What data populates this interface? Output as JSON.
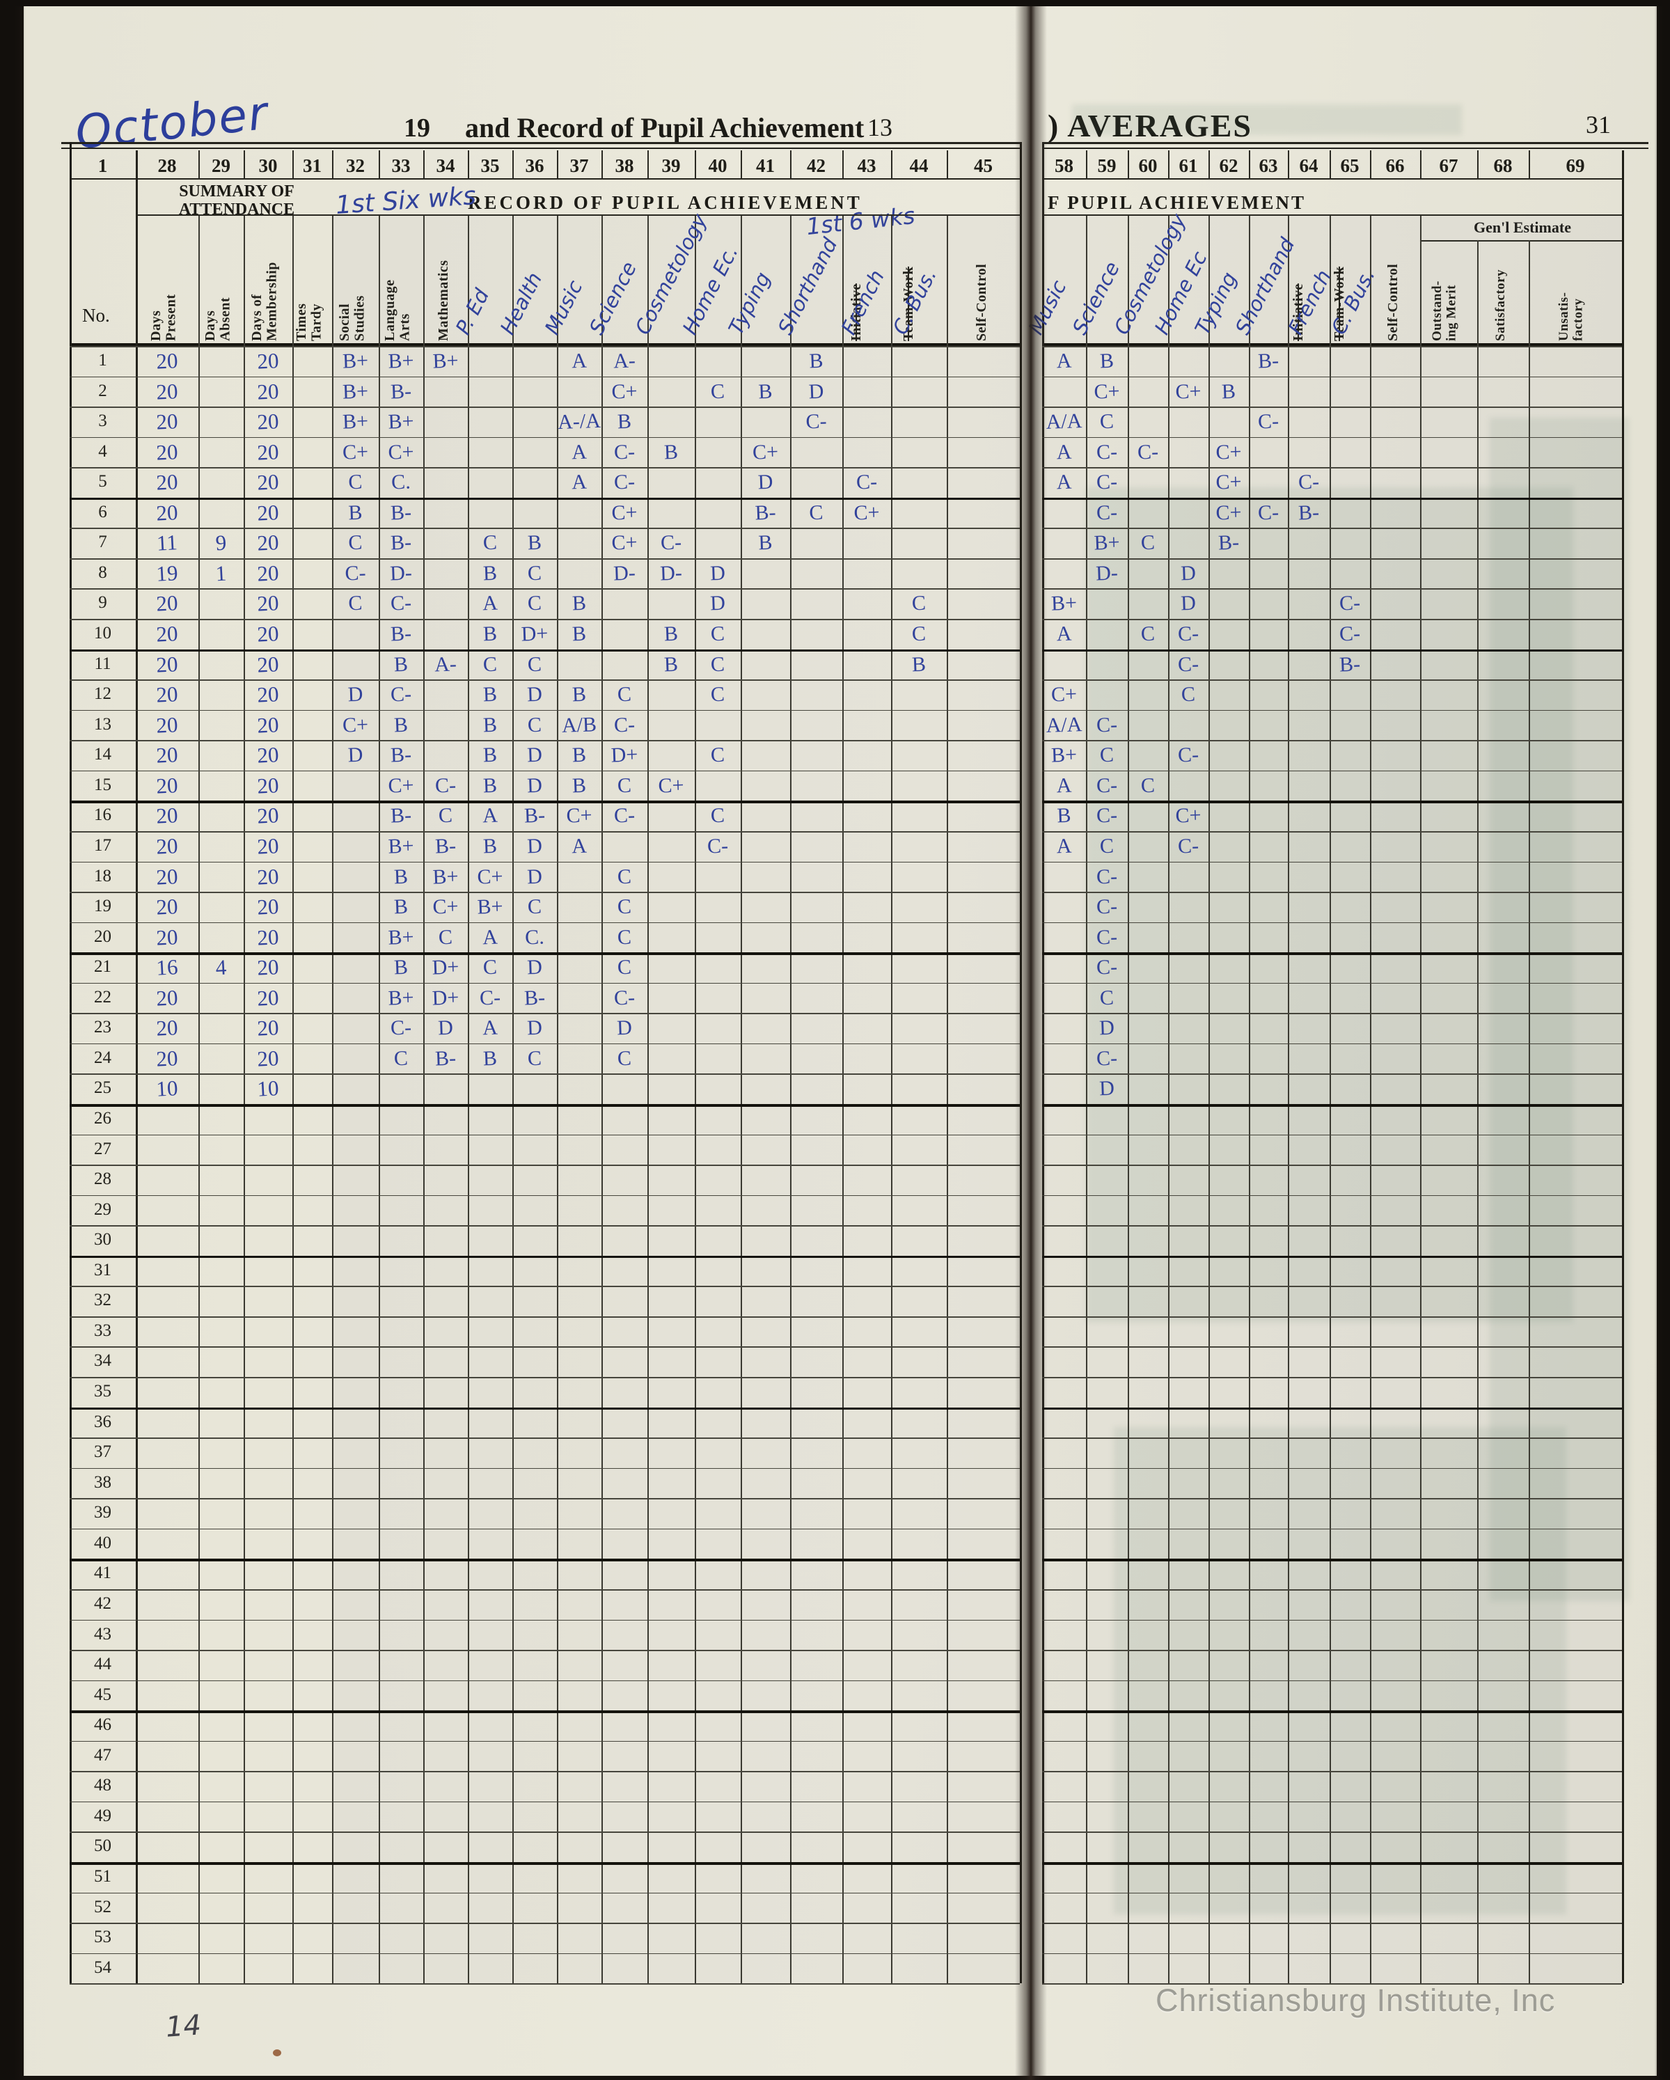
{
  "colors": {
    "ink_blue": "#31429b",
    "paper": "#e9e7da",
    "print_black": "#1c1b16",
    "watermark_gray": "#6c6c66"
  },
  "header": {
    "handwritten_month": "October",
    "year_prefix": "19",
    "left_title": "and Record of Pupil Achievement",
    "left_page_number": "13",
    "right_title": ") AVERAGES",
    "right_page_number": "31"
  },
  "column_numbers": {
    "no_col": "1",
    "left": [
      "28",
      "29",
      "30",
      "31",
      "32",
      "33",
      "34",
      "35",
      "36",
      "37",
      "38",
      "39",
      "40",
      "41",
      "42",
      "43",
      "44",
      "45"
    ],
    "right": [
      "58",
      "59",
      "60",
      "61",
      "62",
      "63",
      "64",
      "65",
      "66",
      "67",
      "68",
      "69"
    ]
  },
  "group_headers": {
    "attendance": "SUMMARY OF\nATTENDANCE",
    "record_left": "RECORD OF PUPIL ACHIEVEMENT",
    "record_right": "F PUPIL ACHIEVEMENT",
    "annotation_first_six_weeks": "1st Six wks",
    "annotation_first_6_wks": "1st 6 wks",
    "no_label": "No.",
    "genl_estimate": "Gen'l Estimate"
  },
  "printed_column_labels": {
    "attendance": [
      "Days\nPresent",
      "Days\nAbsent",
      "Days of\nMembership",
      "Times\nTardy"
    ],
    "subjects": [
      "Social\nStudies",
      "Language\nArts",
      "Mathematics"
    ],
    "struck_initiative": "Initiative",
    "struck_teamwork": "Team-Work",
    "self_control": "Self-Control",
    "genl_cols": [
      "Outstand-\ning Merit",
      "Satisfactory",
      "Unsatis-\nfactory"
    ]
  },
  "handwritten_column_labels": {
    "left_subjects": [
      "P. Ed",
      "Health",
      "Music",
      "Science",
      "Cosmetology",
      "Home Ec.",
      "Typing",
      "Shorthand"
    ],
    "french": "French",
    "c_bus": "C. Bus.",
    "right_subjects": [
      "Music",
      "Science",
      "Cosmetology",
      "Home Ec",
      "Typing",
      "Shorthand"
    ]
  },
  "table": {
    "total_rows": 54,
    "left_grade_order": [
      "Social Studies",
      "Language Arts",
      "Mathematics",
      "P. Ed",
      "Health",
      "Music",
      "Science",
      "Cosmetology",
      "Home Ec",
      "Typing",
      "Shorthand",
      "French",
      "C. Bus",
      "Self-Control"
    ],
    "right_grade_order": [
      "Music",
      "Science",
      "Cosmetology",
      "Home Ec",
      "Typing",
      "Shorthand",
      "French",
      "C. Bus",
      "Self-Control",
      "Outstanding Merit",
      "Satisfactory",
      "Unsatisfactory"
    ],
    "rows": [
      {
        "no": "1",
        "att": [
          "20",
          "",
          "20",
          ""
        ],
        "left": [
          "B+",
          "B+",
          "B+",
          "",
          "",
          "A",
          "A-",
          "",
          "",
          "",
          "B",
          "",
          "",
          ""
        ],
        "right": [
          "A",
          "B",
          "",
          "",
          "",
          "B-",
          "",
          "",
          "",
          "",
          "",
          ""
        ]
      },
      {
        "no": "2",
        "att": [
          "20",
          "",
          "20",
          ""
        ],
        "left": [
          "B+",
          "B-",
          "",
          "",
          "",
          "",
          "C+",
          "",
          "C",
          "B",
          "D",
          "",
          "",
          ""
        ],
        "right": [
          "",
          "C+",
          "",
          "C+",
          "B",
          "",
          "",
          "",
          "",
          "",
          "",
          ""
        ]
      },
      {
        "no": "3",
        "att": [
          "20",
          "",
          "20",
          ""
        ],
        "left": [
          "B+",
          "B+",
          "",
          "",
          "",
          "A-/A",
          "B",
          "",
          "",
          "",
          "C-",
          "",
          "",
          ""
        ],
        "right": [
          "A/A",
          "C",
          "",
          "",
          "",
          "C-",
          "",
          "",
          "",
          "",
          "",
          ""
        ]
      },
      {
        "no": "4",
        "att": [
          "20",
          "",
          "20",
          ""
        ],
        "left": [
          "C+",
          "C+",
          "",
          "",
          "",
          "A",
          "C-",
          "B",
          "",
          "C+",
          "",
          "",
          "",
          ""
        ],
        "right": [
          "A",
          "C-",
          "C-",
          "",
          "C+",
          "",
          "",
          "",
          "",
          "",
          "",
          ""
        ]
      },
      {
        "no": "5",
        "att": [
          "20",
          "",
          "20",
          ""
        ],
        "left": [
          "C",
          "C.",
          "",
          "",
          "",
          "A",
          "C-",
          "",
          "",
          "D",
          "",
          "C-",
          "",
          ""
        ],
        "right": [
          "A",
          "C-",
          "",
          "",
          "C+",
          "",
          "C-",
          "",
          "",
          "",
          "",
          ""
        ]
      },
      {
        "no": "6",
        "att": [
          "20",
          "",
          "20",
          ""
        ],
        "left": [
          "B",
          "B-",
          "",
          "",
          "",
          "",
          "C+",
          "",
          "",
          "B-",
          "C",
          "C+",
          "",
          ""
        ],
        "right": [
          "",
          "C-",
          "",
          "",
          "C+",
          "C-",
          "B-",
          "",
          "",
          "",
          "",
          ""
        ]
      },
      {
        "no": "7",
        "att": [
          "11",
          "9",
          "20",
          ""
        ],
        "left": [
          "C",
          "B-",
          "",
          "C",
          "B",
          "",
          "C+",
          "C-",
          "",
          "B",
          "",
          "",
          "",
          ""
        ],
        "right": [
          "",
          "B+",
          "C",
          "",
          "B-",
          "",
          "",
          "",
          "",
          "",
          "",
          ""
        ]
      },
      {
        "no": "8",
        "att": [
          "19",
          "1",
          "20",
          ""
        ],
        "left": [
          "C-",
          "D-",
          "",
          "B",
          "C",
          "",
          "D-",
          "D-",
          "D",
          "",
          "",
          "",
          "",
          ""
        ],
        "right": [
          "",
          "D-",
          "",
          "D",
          "",
          "",
          "",
          "",
          "",
          "",
          "",
          ""
        ]
      },
      {
        "no": "9",
        "att": [
          "20",
          "",
          "20",
          ""
        ],
        "left": [
          "C",
          "C-",
          "",
          "A",
          "C",
          "B",
          "",
          "",
          "D",
          "",
          "",
          "",
          "C",
          ""
        ],
        "right": [
          "B+",
          "",
          "",
          "D",
          "",
          "",
          "",
          "C-",
          "",
          "",
          "",
          ""
        ]
      },
      {
        "no": "10",
        "att": [
          "20",
          "",
          "20",
          ""
        ],
        "left": [
          "",
          "B-",
          "",
          "B",
          "D+",
          "B",
          "",
          "B",
          "C",
          "",
          "",
          "",
          "C",
          ""
        ],
        "right": [
          "A",
          "",
          "C",
          "C-",
          "",
          "",
          "",
          "C-",
          "",
          "",
          "",
          ""
        ]
      },
      {
        "no": "11",
        "att": [
          "20",
          "",
          "20",
          ""
        ],
        "left": [
          "",
          "B",
          "A-",
          "C",
          "C",
          "",
          "",
          "B",
          "C",
          "",
          "",
          "",
          "B",
          ""
        ],
        "right": [
          "",
          "",
          "",
          "C-",
          "",
          "",
          "",
          "B-",
          "",
          "",
          "",
          ""
        ]
      },
      {
        "no": "12",
        "att": [
          "20",
          "",
          "20",
          ""
        ],
        "left": [
          "D",
          "C-",
          "",
          "B",
          "D",
          "B",
          "C",
          "",
          "C",
          "",
          "",
          "",
          "",
          ""
        ],
        "right": [
          "C+",
          "",
          "",
          "C",
          "",
          "",
          "",
          "",
          "",
          "",
          "",
          ""
        ]
      },
      {
        "no": "13",
        "att": [
          "20",
          "",
          "20",
          ""
        ],
        "left": [
          "C+",
          "B",
          "",
          "B",
          "C",
          "A/B",
          "C-",
          "",
          "",
          "",
          "",
          "",
          "",
          ""
        ],
        "right": [
          "A/A",
          "C-",
          "",
          "",
          "",
          "",
          "",
          "",
          "",
          "",
          "",
          ""
        ]
      },
      {
        "no": "14",
        "att": [
          "20",
          "",
          "20",
          ""
        ],
        "left": [
          "D",
          "B-",
          "",
          "B",
          "D",
          "B",
          "D+",
          "",
          "C",
          "",
          "",
          "",
          "",
          ""
        ],
        "right": [
          "B+",
          "C",
          "",
          "C-",
          "",
          "",
          "",
          "",
          "",
          "",
          "",
          ""
        ]
      },
      {
        "no": "15",
        "att": [
          "20",
          "",
          "20",
          ""
        ],
        "left": [
          "",
          "C+",
          "C-",
          "B",
          "D",
          "B",
          "C",
          "C+",
          "",
          "",
          "",
          "",
          "",
          ""
        ],
        "right": [
          "A",
          "C-",
          "C",
          "",
          "",
          "",
          "",
          "",
          "",
          "",
          "",
          ""
        ]
      },
      {
        "no": "16",
        "att": [
          "20",
          "",
          "20",
          ""
        ],
        "left": [
          "",
          "B-",
          "C",
          "A",
          "B-",
          "C+",
          "C-",
          "",
          "C",
          "",
          "",
          "",
          "",
          ""
        ],
        "right": [
          "B",
          "C-",
          "",
          "C+",
          "",
          "",
          "",
          "",
          "",
          "",
          "",
          ""
        ]
      },
      {
        "no": "17",
        "att": [
          "20",
          "",
          "20",
          ""
        ],
        "left": [
          "",
          "B+",
          "B-",
          "B",
          "D",
          "A",
          "",
          "",
          "C-",
          "",
          "",
          "",
          "",
          ""
        ],
        "right": [
          "A",
          "C",
          "",
          "C-",
          "",
          "",
          "",
          "",
          "",
          "",
          "",
          ""
        ]
      },
      {
        "no": "18",
        "att": [
          "20",
          "",
          "20",
          ""
        ],
        "left": [
          "",
          "B",
          "B+",
          "C+",
          "D",
          "",
          "C",
          "",
          "",
          "",
          "",
          "",
          "",
          ""
        ],
        "right": [
          "",
          "C-",
          "",
          "",
          "",
          "",
          "",
          "",
          "",
          "",
          "",
          ""
        ]
      },
      {
        "no": "19",
        "att": [
          "20",
          "",
          "20",
          ""
        ],
        "left": [
          "",
          "B",
          "C+",
          "B+",
          "C",
          "",
          "C",
          "",
          "",
          "",
          "",
          "",
          "",
          ""
        ],
        "right": [
          "",
          "C-",
          "",
          "",
          "",
          "",
          "",
          "",
          "",
          "",
          "",
          ""
        ]
      },
      {
        "no": "20",
        "att": [
          "20",
          "",
          "20",
          ""
        ],
        "left": [
          "",
          "B+",
          "C",
          "A",
          "C.",
          "",
          "C",
          "",
          "",
          "",
          "",
          "",
          "",
          ""
        ],
        "right": [
          "",
          "C-",
          "",
          "",
          "",
          "",
          "",
          "",
          "",
          "",
          "",
          ""
        ]
      },
      {
        "no": "21",
        "att": [
          "16",
          "4",
          "20",
          ""
        ],
        "left": [
          "",
          "B",
          "D+",
          "C",
          "D",
          "",
          "C",
          "",
          "",
          "",
          "",
          "",
          "",
          ""
        ],
        "right": [
          "",
          "C-",
          "",
          "",
          "",
          "",
          "",
          "",
          "",
          "",
          "",
          ""
        ]
      },
      {
        "no": "22",
        "att": [
          "20",
          "",
          "20",
          ""
        ],
        "left": [
          "",
          "B+",
          "D+",
          "C-",
          "B-",
          "",
          "C-",
          "",
          "",
          "",
          "",
          "",
          "",
          ""
        ],
        "right": [
          "",
          "C",
          "",
          "",
          "",
          "",
          "",
          "",
          "",
          "",
          "",
          ""
        ]
      },
      {
        "no": "23",
        "att": [
          "20",
          "",
          "20",
          ""
        ],
        "left": [
          "",
          "C-",
          "D",
          "A",
          "D",
          "",
          "D",
          "",
          "",
          "",
          "",
          "",
          "",
          ""
        ],
        "right": [
          "",
          "D",
          "",
          "",
          "",
          "",
          "",
          "",
          "",
          "",
          "",
          ""
        ]
      },
      {
        "no": "24",
        "att": [
          "20",
          "",
          "20",
          ""
        ],
        "left": [
          "",
          "C",
          "B-",
          "B",
          "C",
          "",
          "C",
          "",
          "",
          "",
          "",
          "",
          "",
          ""
        ],
        "right": [
          "",
          "C-",
          "",
          "",
          "",
          "",
          "",
          "",
          "",
          "",
          "",
          ""
        ]
      },
      {
        "no": "25",
        "att": [
          "10",
          "",
          "10",
          ""
        ],
        "left": [
          "",
          "",
          "",
          "",
          "",
          "",
          "",
          "",
          "",
          "",
          "",
          "",
          "",
          ""
        ],
        "right": [
          "",
          "D",
          "",
          "",
          "",
          "",
          "",
          "",
          "",
          "",
          "",
          ""
        ]
      }
    ]
  },
  "footer": {
    "handwritten_note": "14",
    "watermark": "Christiansburg Institute, Inc"
  }
}
